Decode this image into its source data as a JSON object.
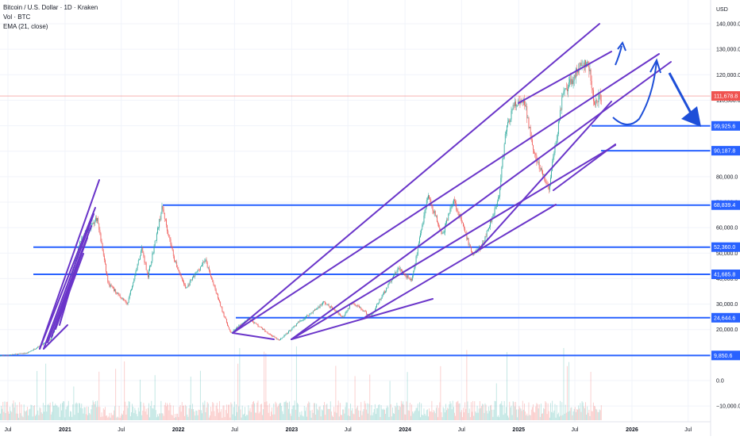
{
  "header": {
    "symbol_line": "Bitcoin / U.S. Dollar · 1D · Kraken",
    "volume_line": "Vol · BTC",
    "ema_line": "EMA (21, close)"
  },
  "colors": {
    "level_line": "#2962ff",
    "trend_line": "#6a35c9",
    "price_line": "#ef5350",
    "up_candle": "#26a69a",
    "down_candle": "#ef5350",
    "arrow": "#1e4fd8",
    "grid": "#f0f3fa",
    "tag_bg": "#2962ff"
  },
  "chart_data": {
    "type": "candlestick",
    "title": "Bitcoin / U.S. Dollar · 1D · Kraken",
    "price_axis_unit": "USD",
    "price_axis_ticks": [
      "140,000.0",
      "130,000.0",
      "120,000.0",
      "110,000.0",
      "100,000.0",
      "90,000.0",
      "80,000.0",
      "70,000.0",
      "60,000.0",
      "50,000.0",
      "40,000.0",
      "30,000.0",
      "20,000.0",
      "10,000.0",
      "0.0",
      "−10,000.0"
    ],
    "time_axis_ticks": [
      "Jul",
      "2021",
      "Jul",
      "2022",
      "Jul",
      "2023",
      "Jul",
      "2024",
      "Jul",
      "2025",
      "Jul",
      "2026",
      "Jul"
    ],
    "last_price": "111,678.8",
    "horizontal_levels": [
      "99,925.6",
      "90,187.8",
      "68,839.4",
      "52,360.0",
      "41,685.8",
      "24,644.6",
      "9,850.6"
    ],
    "price_path": [
      [
        "2020-06-01",
        9600
      ],
      [
        "2020-09-01",
        10800
      ],
      [
        "2020-11-15",
        16000
      ],
      [
        "2021-01-05",
        33000
      ],
      [
        "2021-02-20",
        55000
      ],
      [
        "2021-04-14",
        64000
      ],
      [
        "2021-05-20",
        38000
      ],
      [
        "2021-07-20",
        30000
      ],
      [
        "2021-09-05",
        52000
      ],
      [
        "2021-09-25",
        41000
      ],
      [
        "2021-11-10",
        68000
      ],
      [
        "2021-12-20",
        47000
      ],
      [
        "2022-01-25",
        36000
      ],
      [
        "2022-03-28",
        47500
      ],
      [
        "2022-05-15",
        30000
      ],
      [
        "2022-06-18",
        18500
      ],
      [
        "2022-08-14",
        24500
      ],
      [
        "2022-10-10",
        19200
      ],
      [
        "2022-11-21",
        15700
      ],
      [
        "2023-01-20",
        22500
      ],
      [
        "2023-03-20",
        28000
      ],
      [
        "2023-04-14",
        30800
      ],
      [
        "2023-06-15",
        25000
      ],
      [
        "2023-07-15",
        31000
      ],
      [
        "2023-09-11",
        25000
      ],
      [
        "2023-10-25",
        34500
      ],
      [
        "2023-12-10",
        44000
      ],
      [
        "2024-01-23",
        39000
      ],
      [
        "2024-03-14",
        73000
      ],
      [
        "2024-05-01",
        57000
      ],
      [
        "2024-06-05",
        71500
      ],
      [
        "2024-08-05",
        49500
      ],
      [
        "2024-09-06",
        53000
      ],
      [
        "2024-10-29",
        72000
      ],
      [
        "2024-11-22",
        99000
      ],
      [
        "2024-12-17",
        108000
      ],
      [
        "2025-01-20",
        109000
      ],
      [
        "2025-02-25",
        87000
      ],
      [
        "2025-04-08",
        75000
      ],
      [
        "2025-05-22",
        111000
      ],
      [
        "2025-07-14",
        123000
      ],
      [
        "2025-08-14",
        124000
      ],
      [
        "2025-09-01",
        108000
      ],
      [
        "2025-09-25",
        111678.8
      ]
    ]
  }
}
